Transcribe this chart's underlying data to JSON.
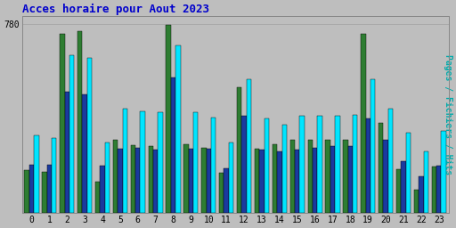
{
  "title": "Acces horaire pour Aout 2023",
  "title_color": "#0000cc",
  "title_fontsize": 9,
  "ylabel_right": "Pages / Fichiers / Hits",
  "ylabel_right_color": "#00aaaa",
  "ylabel_right_fontsize": 7,
  "ymax": 780,
  "ytick_label": "780",
  "background_color": "#bebebe",
  "plot_bg_color": "#bebebe",
  "hours": [
    0,
    1,
    2,
    3,
    4,
    5,
    6,
    7,
    8,
    9,
    10,
    11,
    12,
    13,
    14,
    15,
    16,
    17,
    18,
    19,
    20,
    21,
    22,
    23
  ],
  "pages": [
    175,
    170,
    740,
    750,
    130,
    300,
    280,
    275,
    775,
    285,
    270,
    165,
    520,
    265,
    285,
    300,
    300,
    300,
    300,
    740,
    370,
    180,
    95,
    190
  ],
  "fichiers": [
    200,
    200,
    500,
    490,
    195,
    265,
    270,
    260,
    560,
    265,
    265,
    185,
    400,
    260,
    255,
    260,
    270,
    275,
    275,
    390,
    300,
    215,
    150,
    195
  ],
  "hits": [
    320,
    310,
    650,
    640,
    290,
    430,
    420,
    415,
    690,
    415,
    395,
    290,
    550,
    390,
    365,
    400,
    400,
    400,
    405,
    550,
    430,
    330,
    255,
    340
  ],
  "color_pages": "#2e7d32",
  "color_fichiers": "#1a3a9e",
  "color_hits": "#00e5ff",
  "bar_width": 0.27,
  "grid_color": "#aaaaaa",
  "tick_fontsize": 7,
  "tick_color": "#000000",
  "font_family": "monospace"
}
